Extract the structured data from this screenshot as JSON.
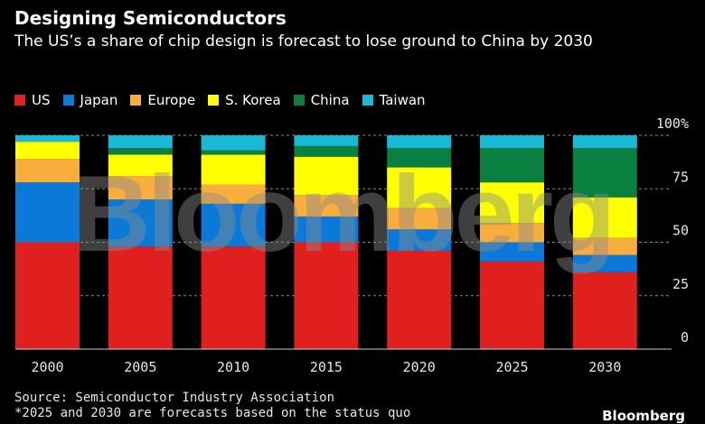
{
  "chart_data": {
    "type": "bar",
    "stacked": true,
    "title": "Designing Semiconductors",
    "subtitle": "The US’s a share of chip design is forecast to lose ground to China by 2030",
    "categories": [
      "2000",
      "2005",
      "2010",
      "2015",
      "2020",
      "2025",
      "2030"
    ],
    "series": [
      {
        "name": "US",
        "color": "#e0201f",
        "values": [
          50,
          48,
          48,
          50,
          46,
          41,
          36
        ]
      },
      {
        "name": "Japan",
        "color": "#0a79d8",
        "values": [
          28,
          22,
          20,
          12,
          10,
          9,
          8
        ]
      },
      {
        "name": "Europe",
        "color": "#f9ad3c",
        "values": [
          11,
          11,
          9,
          10,
          10,
          9,
          8
        ]
      },
      {
        "name": "S. Korea",
        "color": "#ffff00",
        "values": [
          8,
          10,
          14,
          18,
          19,
          19,
          19
        ]
      },
      {
        "name": "China",
        "color": "#0a8040",
        "values": [
          0,
          3,
          2,
          5,
          9,
          16,
          23
        ]
      },
      {
        "name": "Taiwan",
        "color": "#1ab8d4",
        "values": [
          3,
          6,
          7,
          5,
          6,
          6,
          6
        ]
      }
    ],
    "yticks": [
      "0",
      "25",
      "50",
      "75",
      "100%"
    ],
    "ytick_values": [
      0,
      25,
      50,
      75,
      100
    ],
    "ylim": [
      0,
      100
    ],
    "grid": true,
    "legend_position": "top-left",
    "y_axis_side": "right"
  },
  "footer": {
    "source": "Source: Semiconductor Industry Association",
    "note": "*2025 and 2030 are forecasts based on the status quo",
    "brand": "Bloomberg"
  },
  "watermark": "Bloomberg"
}
